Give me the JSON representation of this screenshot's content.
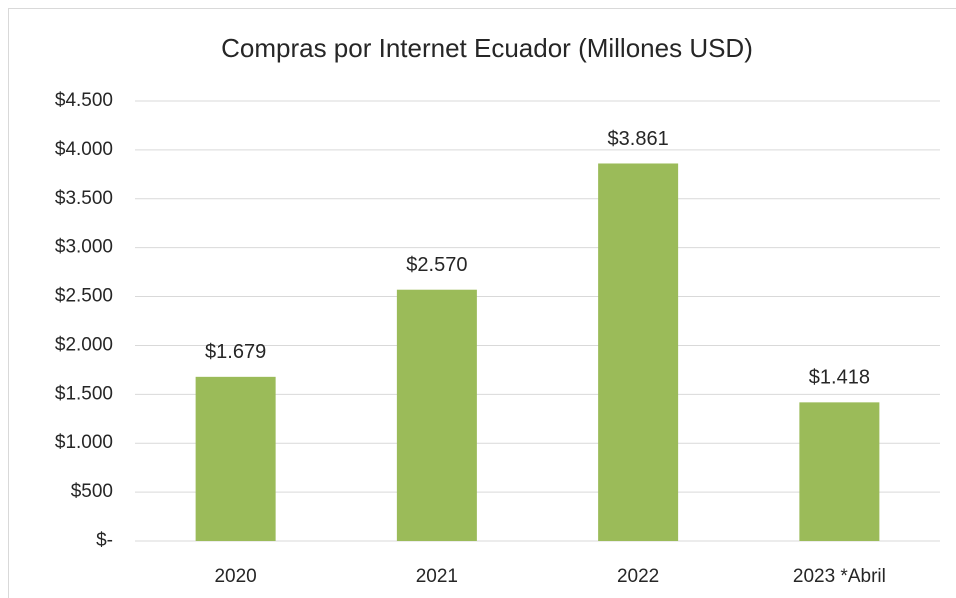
{
  "chart_data": {
    "type": "bar",
    "title": "Compras por Internet Ecuador (Millones USD)",
    "categories": [
      "2020",
      "2021",
      "2022",
      "2023 *Abril"
    ],
    "values": [
      1679,
      2570,
      3861,
      1418
    ],
    "value_labels": [
      "$1.679",
      "$2.570",
      "$3.861",
      "$1.418"
    ],
    "color": "#9bbb59",
    "ylim": [
      0,
      4500
    ],
    "yticks": [
      {
        "value": 0,
        "label": "$-"
      },
      {
        "value": 500,
        "label": "$500"
      },
      {
        "value": 1000,
        "label": "$1.000"
      },
      {
        "value": 1500,
        "label": "$1.500"
      },
      {
        "value": 2000,
        "label": "$2.000"
      },
      {
        "value": 2500,
        "label": "$2.500"
      },
      {
        "value": 3000,
        "label": "$3.000"
      },
      {
        "value": 3500,
        "label": "$3.500"
      },
      {
        "value": 4000,
        "label": "$4.000"
      },
      {
        "value": 4500,
        "label": "$4.500"
      }
    ],
    "grid": true
  }
}
